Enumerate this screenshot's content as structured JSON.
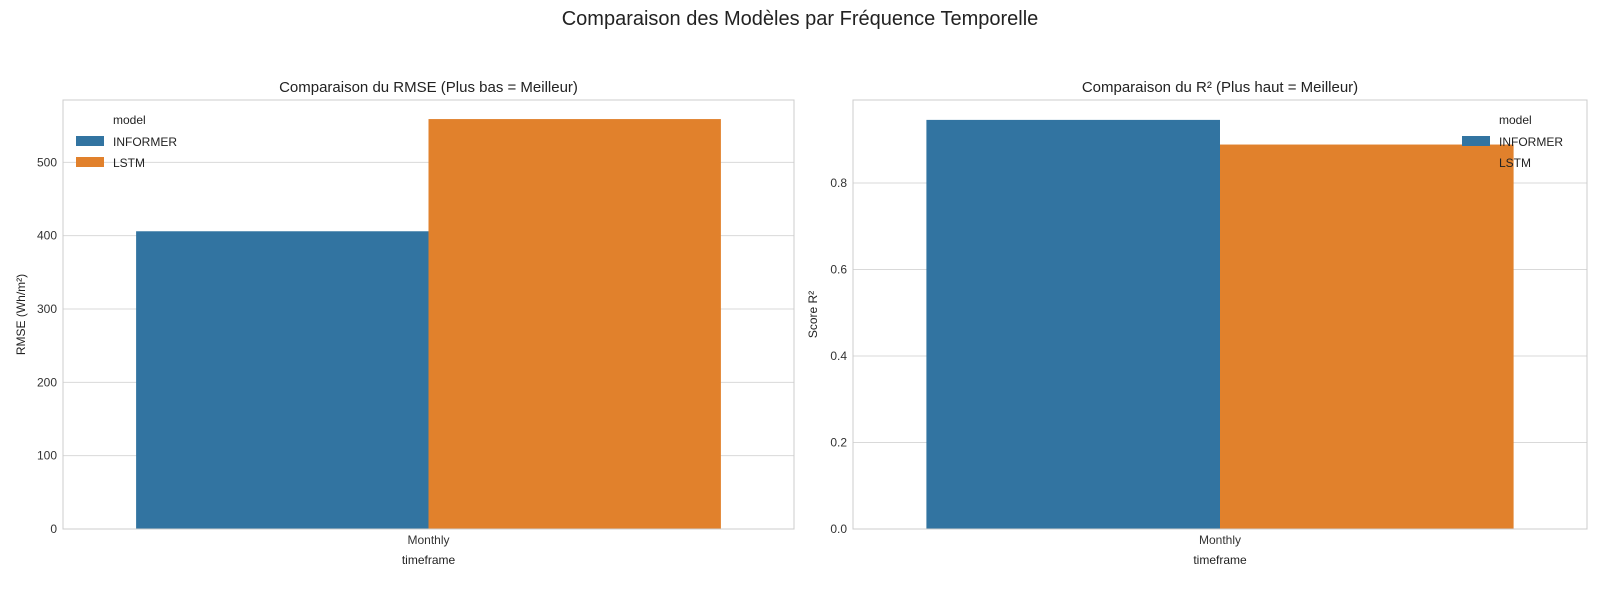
{
  "figure_title": "Comparaison des Modèles par Fréquence Temporelle",
  "colors": {
    "INFORMER": "#3274a1",
    "LSTM": "#e1812c",
    "grid": "#d9d9d9",
    "frame": "#cccccc"
  },
  "chart_data": [
    {
      "type": "bar",
      "title": "Comparaison du RMSE (Plus bas = Meilleur)",
      "xlabel": "timeframe",
      "ylabel": "RMSE (Wh/m²)",
      "categories": [
        "Monthly"
      ],
      "ylim": [
        0,
        585
      ],
      "yticks": [
        0,
        100,
        200,
        300,
        400,
        500
      ],
      "ytick_labels": [
        "0",
        "100",
        "200",
        "300",
        "400",
        "500"
      ],
      "grid": true,
      "legend": {
        "title": "model",
        "placement": "top-left"
      },
      "series": [
        {
          "name": "INFORMER",
          "values": [
            406
          ]
        },
        {
          "name": "LSTM",
          "values": [
            559
          ]
        }
      ]
    },
    {
      "type": "bar",
      "title": "Comparaison du R² (Plus haut = Meilleur)",
      "xlabel": "timeframe",
      "ylabel": "Score R²",
      "categories": [
        "Monthly"
      ],
      "ylim": [
        0,
        0.992
      ],
      "yticks": [
        0,
        0.2,
        0.4,
        0.6,
        0.8
      ],
      "ytick_labels": [
        "0.0",
        "0.2",
        "0.4",
        "0.6",
        "0.8"
      ],
      "grid": true,
      "legend": {
        "title": "model",
        "placement": "top-right"
      },
      "series": [
        {
          "name": "INFORMER",
          "values": [
            0.946
          ]
        },
        {
          "name": "LSTM",
          "values": [
            0.889
          ]
        }
      ]
    }
  ]
}
